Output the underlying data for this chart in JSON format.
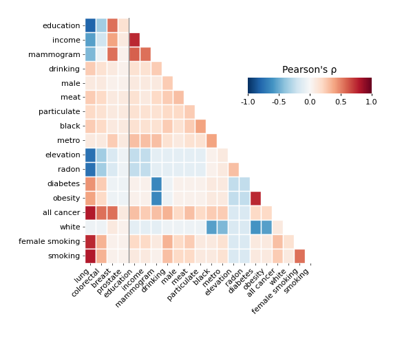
{
  "row_labels": [
    "education",
    "income",
    "mammogram",
    "drinking",
    "male",
    "meat",
    "particulate",
    "black",
    "metro",
    "elevation",
    "radon",
    "diabetes",
    "obesity",
    "all cancer",
    "white",
    "female smoking",
    "smoking"
  ],
  "col_labels": [
    "lung",
    "colorectal",
    "breast",
    "prostate",
    "education",
    "income",
    "mammogram",
    "drinking",
    "male",
    "meat",
    "particulate",
    "black",
    "metro",
    "elevation",
    "radon",
    "diabetes",
    "obesity",
    "all cancer",
    "white",
    "female smoking",
    "smoking"
  ],
  "title": "Pearson's ρ",
  "vline_after_col": 3,
  "corr_matrix": [
    [
      -0.8,
      -0.35,
      0.55,
      0.15,
      null,
      null,
      null,
      null,
      null,
      null,
      null,
      null,
      null,
      null,
      null,
      null,
      null,
      null,
      null,
      null,
      null
    ],
    [
      -0.55,
      -0.2,
      0.4,
      0.1,
      0.75,
      null,
      null,
      null,
      null,
      null,
      null,
      null,
      null,
      null,
      null,
      null,
      null,
      null,
      null,
      null,
      null
    ],
    [
      -0.45,
      -0.05,
      0.55,
      0.05,
      0.6,
      0.55,
      null,
      null,
      null,
      null,
      null,
      null,
      null,
      null,
      null,
      null,
      null,
      null,
      null,
      null,
      null
    ],
    [
      0.25,
      0.15,
      0.1,
      0.05,
      0.15,
      0.15,
      0.25,
      null,
      null,
      null,
      null,
      null,
      null,
      null,
      null,
      null,
      null,
      null,
      null,
      null,
      null
    ],
    [
      0.1,
      0.1,
      0.05,
      0.05,
      0.1,
      0.1,
      0.1,
      0.25,
      null,
      null,
      null,
      null,
      null,
      null,
      null,
      null,
      null,
      null,
      null,
      null,
      null
    ],
    [
      0.25,
      0.2,
      0.1,
      0.1,
      0.15,
      0.1,
      0.2,
      0.25,
      0.3,
      null,
      null,
      null,
      null,
      null,
      null,
      null,
      null,
      null,
      null,
      null,
      null
    ],
    [
      0.2,
      0.15,
      0.1,
      0.1,
      0.15,
      0.15,
      0.15,
      0.2,
      0.2,
      0.25,
      null,
      null,
      null,
      null,
      null,
      null,
      null,
      null,
      null,
      null,
      null
    ],
    [
      0.25,
      0.2,
      0.1,
      0.1,
      0.15,
      0.15,
      0.15,
      0.25,
      0.15,
      0.25,
      0.4,
      null,
      null,
      null,
      null,
      null,
      null,
      null,
      null,
      null,
      null
    ],
    [
      0.1,
      0.1,
      0.25,
      0.1,
      0.3,
      0.3,
      0.3,
      0.15,
      0.1,
      0.15,
      0.15,
      0.4,
      null,
      null,
      null,
      null,
      null,
      null,
      null,
      null,
      null
    ],
    [
      -0.75,
      -0.35,
      -0.15,
      -0.05,
      -0.25,
      -0.25,
      -0.1,
      -0.1,
      -0.1,
      -0.1,
      -0.1,
      0.05,
      0.1,
      null,
      null,
      null,
      null,
      null,
      null,
      null,
      null
    ],
    [
      -0.75,
      -0.35,
      -0.15,
      -0.05,
      -0.25,
      -0.25,
      -0.1,
      -0.1,
      -0.1,
      -0.1,
      -0.1,
      0.05,
      0.1,
      0.3,
      null,
      null,
      null,
      null,
      null,
      null,
      null
    ],
    [
      0.45,
      0.25,
      -0.05,
      -0.05,
      0.05,
      0.05,
      -0.65,
      -0.05,
      0.05,
      0.05,
      0.05,
      0.1,
      0.1,
      -0.25,
      -0.25,
      null,
      null,
      null,
      null,
      null,
      null
    ],
    [
      0.4,
      0.2,
      -0.05,
      -0.05,
      0.05,
      0.05,
      -0.65,
      -0.05,
      0.05,
      0.05,
      0.05,
      0.1,
      0.1,
      -0.25,
      -0.25,
      0.75,
      null,
      null,
      null,
      null,
      null
    ],
    [
      0.8,
      0.55,
      0.55,
      0.1,
      0.3,
      0.25,
      0.3,
      0.35,
      0.2,
      0.3,
      0.2,
      0.25,
      0.25,
      -0.15,
      -0.15,
      0.2,
      0.2,
      null,
      null,
      null,
      null
    ],
    [
      -0.05,
      -0.05,
      0.1,
      0.05,
      -0.1,
      -0.1,
      -0.1,
      -0.05,
      -0.05,
      -0.05,
      -0.05,
      -0.55,
      -0.45,
      -0.15,
      -0.15,
      -0.6,
      -0.55,
      0.1,
      null,
      null,
      null
    ],
    [
      0.75,
      0.35,
      0.05,
      0.05,
      0.2,
      0.2,
      0.1,
      0.35,
      0.2,
      0.25,
      0.1,
      0.1,
      0.15,
      -0.15,
      -0.15,
      0.1,
      0.1,
      0.3,
      0.15,
      null,
      null
    ],
    [
      0.8,
      0.35,
      0.05,
      0.05,
      0.1,
      0.1,
      0.05,
      0.3,
      0.2,
      0.2,
      0.1,
      0.1,
      0.15,
      -0.15,
      -0.15,
      0.1,
      0.1,
      0.25,
      0.1,
      0.55,
      null
    ]
  ],
  "colorbar_ticks": [
    -1.0,
    -0.5,
    0.0,
    0.5,
    1.0
  ],
  "vmin": -1.0,
  "vmax": 1.0,
  "background_color": "#ffffff",
  "cell_edgecolor": "#ffffff",
  "cell_linewidth": 1.0
}
